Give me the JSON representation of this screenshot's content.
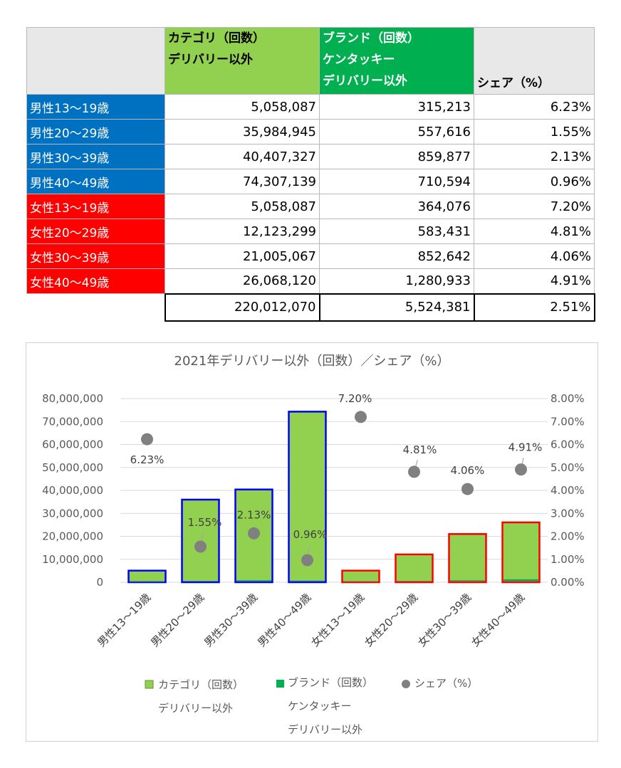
{
  "table": {
    "headers": {
      "blank": "",
      "category": "カテゴリ（回数）\nデリバリー以外",
      "brand": "ブランド（回数）\nケンタッキー\nデリバリー以外",
      "share": "シェア（%）"
    },
    "rows": [
      {
        "label": "男性13～19歳",
        "group": "male",
        "category": "5,058,087",
        "brand": "315,213",
        "share": "6.23%"
      },
      {
        "label": "男性20～29歳",
        "group": "male",
        "category": "35,984,945",
        "brand": "557,616",
        "share": "1.55%"
      },
      {
        "label": "男性30～39歳",
        "group": "male",
        "category": "40,407,327",
        "brand": "859,877",
        "share": "2.13%"
      },
      {
        "label": "男性40～49歳",
        "group": "male",
        "category": "74,307,139",
        "brand": "710,594",
        "share": "0.96%"
      },
      {
        "label": "女性13～19歳",
        "group": "female",
        "category": "5,058,087",
        "brand": "364,076",
        "share": "7.20%"
      },
      {
        "label": "女性20～29歳",
        "group": "female",
        "category": "12,123,299",
        "brand": "583,431",
        "share": "4.81%"
      },
      {
        "label": "女性30～39歳",
        "group": "female",
        "category": "21,005,067",
        "brand": "852,642",
        "share": "4.06%"
      },
      {
        "label": "女性40～49歳",
        "group": "female",
        "category": "26,068,120",
        "brand": "1,280,933",
        "share": "4.91%"
      }
    ],
    "total": {
      "category": "220,012,070",
      "brand": "5,524,381",
      "share": "2.51%"
    }
  },
  "chart_data": {
    "type": "bar",
    "title": "2021年デリバリー以外（回数）／シェア（%）",
    "categories": [
      "男性13～19歳",
      "男性20～29歳",
      "男性30～39歳",
      "男性40～49歳",
      "女性13～19歳",
      "女性20～29歳",
      "女性30～39歳",
      "女性40～49歳"
    ],
    "series": [
      {
        "name": "カテゴリ（回数）\nデリバリー以外",
        "type": "bar",
        "axis": "left",
        "values": [
          5058087,
          35984945,
          40407327,
          74307139,
          5058087,
          12123299,
          21005067,
          26068120
        ]
      },
      {
        "name": "ブランド（回数）\nケンタッキー\nデリバリー以外",
        "type": "bar",
        "axis": "left",
        "values": [
          315213,
          557616,
          859877,
          710594,
          364076,
          583431,
          852642,
          1280933
        ]
      },
      {
        "name": "シェア（%）",
        "type": "scatter",
        "axis": "right",
        "values": [
          6.23,
          1.55,
          2.13,
          0.96,
          7.2,
          4.81,
          4.06,
          4.91
        ],
        "labels": [
          "6.23%",
          "1.55%",
          "2.13%",
          "0.96%",
          "7.20%",
          "4.81%",
          "4.06%",
          "4.91%"
        ]
      }
    ],
    "ylim": [
      0,
      80000000
    ],
    "y2lim": [
      0,
      8
    ],
    "yticks": [
      "0",
      "10,000,000",
      "20,000,000",
      "30,000,000",
      "40,000,000",
      "50,000,000",
      "60,000,000",
      "70,000,000",
      "80,000,000"
    ],
    "y2ticks": [
      "0.00%",
      "1.00%",
      "2.00%",
      "3.00%",
      "4.00%",
      "5.00%",
      "6.00%",
      "7.00%",
      "8.00%"
    ],
    "grid": true,
    "legend_position": "bottom",
    "colors": {
      "category_fill": "#92d050",
      "brand_fill": "#00b050",
      "share_marker": "#808080",
      "male_outline": "#0000ff",
      "female_outline": "#ff0000",
      "gridline": "#d9d9d9"
    }
  }
}
